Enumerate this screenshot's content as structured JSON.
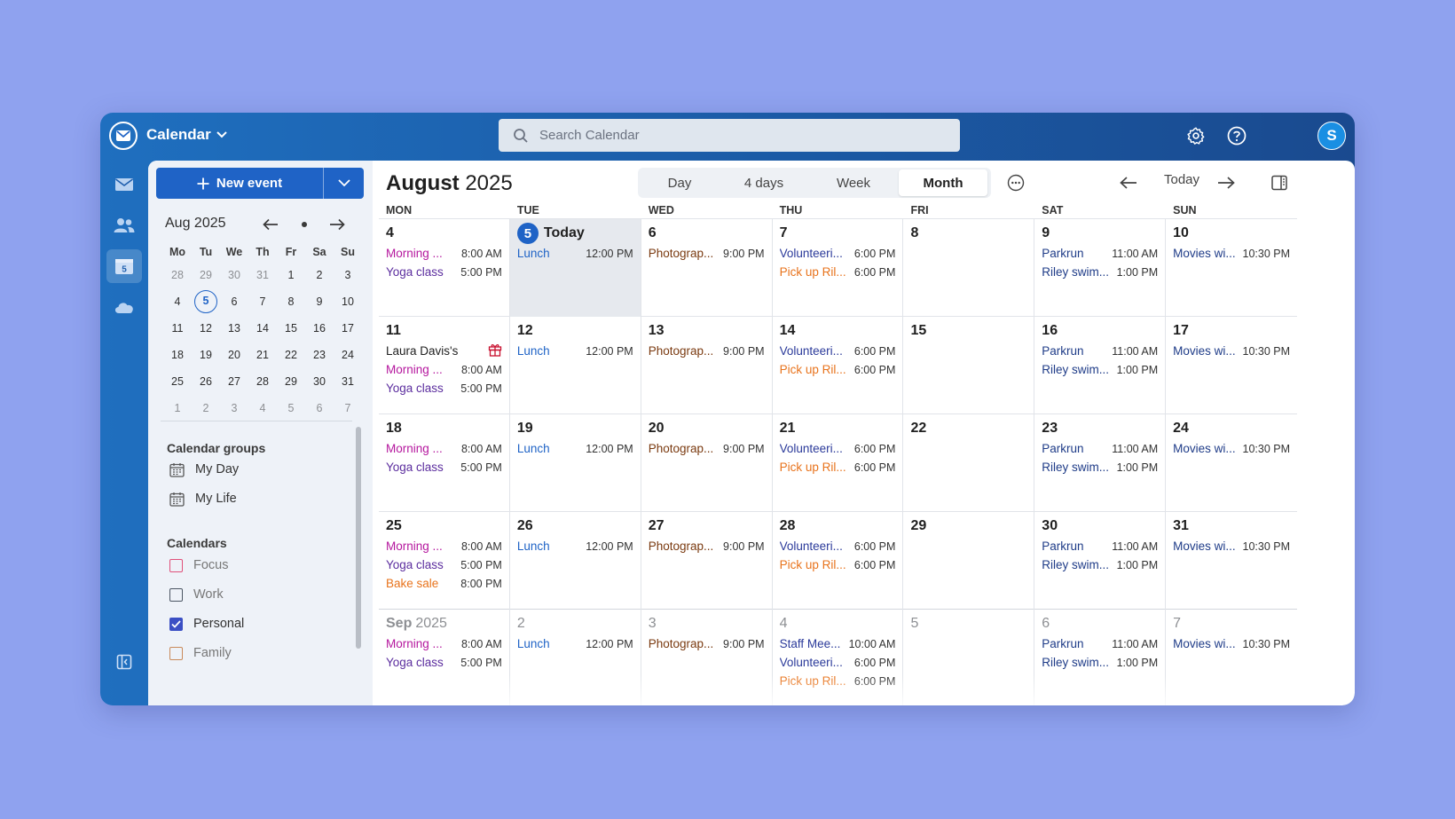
{
  "app": {
    "title": "Calendar"
  },
  "search": {
    "placeholder": "Search Calendar"
  },
  "user": {
    "avatar_initial": "S"
  },
  "rail": {
    "calendar_day": "5"
  },
  "sidebar": {
    "new_event_label": "New event",
    "mini_calendar": {
      "title": "Aug 2025",
      "weekdays": [
        "Mo",
        "Tu",
        "We",
        "Th",
        "Fr",
        "Sa",
        "Su"
      ],
      "weeks": [
        [
          "28",
          "29",
          "30",
          "31",
          "1",
          "2",
          "3"
        ],
        [
          "4",
          "5",
          "6",
          "7",
          "8",
          "9",
          "10"
        ],
        [
          "11",
          "12",
          "13",
          "14",
          "15",
          "16",
          "17"
        ],
        [
          "18",
          "19",
          "20",
          "21",
          "22",
          "23",
          "24"
        ],
        [
          "25",
          "26",
          "27",
          "28",
          "29",
          "30",
          "31"
        ],
        [
          "1",
          "2",
          "3",
          "4",
          "5",
          "6",
          "7"
        ]
      ],
      "today": "5"
    },
    "calendar_groups": {
      "title": "Calendar groups",
      "items": [
        "My Day",
        "My Life"
      ]
    },
    "calendars": {
      "title": "Calendars",
      "items": [
        {
          "label": "Focus",
          "color": "#e0507a",
          "checked": false
        },
        {
          "label": "Work",
          "color": "#4b5563",
          "checked": false
        },
        {
          "label": "Personal",
          "color": "#3b4fc4",
          "checked": true
        },
        {
          "label": "Family",
          "color": "#c98a5a",
          "checked": false
        }
      ]
    }
  },
  "header": {
    "month": "August",
    "year": "2025",
    "views": [
      "Day",
      "4 days",
      "Week",
      "Month"
    ],
    "active_view": "Month",
    "today_label": "Today"
  },
  "colors": {
    "magenta": "#b5179e",
    "purple": "#5b2d9e",
    "blue": "#1f63c6",
    "brown": "#7a3a10",
    "navy": "#2b3a9a",
    "orange": "#e8731c",
    "darkblue": "#1f3c88"
  },
  "weekdays": [
    "MON",
    "TUE",
    "WED",
    "THU",
    "FRI",
    "SAT",
    "SUN"
  ],
  "weeks": [
    [
      {
        "num": "4",
        "events": [
          {
            "title": "Morning ...",
            "time": "8:00 AM",
            "color": "magenta"
          },
          {
            "title": "Yoga class",
            "time": "5:00 PM",
            "color": "purple"
          }
        ]
      },
      {
        "num": "5",
        "today": true,
        "today_label": "Today",
        "events": [
          {
            "title": "Lunch",
            "time": "12:00 PM",
            "color": "blue"
          }
        ]
      },
      {
        "num": "6",
        "events": [
          {
            "title": "Photograp...",
            "time": "9:00 PM",
            "color": "brown"
          }
        ]
      },
      {
        "num": "7",
        "events": [
          {
            "title": "Volunteeri...",
            "time": "6:00 PM",
            "color": "navy"
          },
          {
            "title": "Pick up Ril...",
            "time": "6:00 PM",
            "color": "orange"
          }
        ]
      },
      {
        "num": "8",
        "events": []
      },
      {
        "num": "9",
        "events": [
          {
            "title": "Parkrun",
            "time": "11:00 AM",
            "color": "darkblue"
          },
          {
            "title": "Riley swim...",
            "time": "1:00 PM",
            "color": "darkblue"
          }
        ]
      },
      {
        "num": "10",
        "events": [
          {
            "title": "Movies wi...",
            "time": "10:30 PM",
            "color": "darkblue"
          }
        ]
      }
    ],
    [
      {
        "num": "11",
        "events": [
          {
            "title": "Laura Davis's ...",
            "time": "",
            "color": "dark",
            "gift": true
          },
          {
            "title": "Morning ...",
            "time": "8:00 AM",
            "color": "magenta"
          },
          {
            "title": "Yoga class",
            "time": "5:00 PM",
            "color": "purple"
          }
        ]
      },
      {
        "num": "12",
        "events": [
          {
            "title": "Lunch",
            "time": "12:00 PM",
            "color": "blue"
          }
        ]
      },
      {
        "num": "13",
        "events": [
          {
            "title": "Photograp...",
            "time": "9:00 PM",
            "color": "brown"
          }
        ]
      },
      {
        "num": "14",
        "events": [
          {
            "title": "Volunteeri...",
            "time": "6:00 PM",
            "color": "navy"
          },
          {
            "title": "Pick up Ril...",
            "time": "6:00 PM",
            "color": "orange"
          }
        ]
      },
      {
        "num": "15",
        "events": []
      },
      {
        "num": "16",
        "events": [
          {
            "title": "Parkrun",
            "time": "11:00 AM",
            "color": "darkblue"
          },
          {
            "title": "Riley swim...",
            "time": "1:00 PM",
            "color": "darkblue"
          }
        ]
      },
      {
        "num": "17",
        "events": [
          {
            "title": "Movies wi...",
            "time": "10:30 PM",
            "color": "darkblue"
          }
        ]
      }
    ],
    [
      {
        "num": "18",
        "events": [
          {
            "title": "Morning ...",
            "time": "8:00 AM",
            "color": "magenta"
          },
          {
            "title": "Yoga class",
            "time": "5:00 PM",
            "color": "purple"
          }
        ]
      },
      {
        "num": "19",
        "events": [
          {
            "title": "Lunch",
            "time": "12:00 PM",
            "color": "blue"
          }
        ]
      },
      {
        "num": "20",
        "events": [
          {
            "title": "Photograp...",
            "time": "9:00 PM",
            "color": "brown"
          }
        ]
      },
      {
        "num": "21",
        "events": [
          {
            "title": "Volunteeri...",
            "time": "6:00 PM",
            "color": "navy"
          },
          {
            "title": "Pick up Ril...",
            "time": "6:00 PM",
            "color": "orange"
          }
        ]
      },
      {
        "num": "22",
        "events": []
      },
      {
        "num": "23",
        "events": [
          {
            "title": "Parkrun",
            "time": "11:00 AM",
            "color": "darkblue"
          },
          {
            "title": "Riley swim...",
            "time": "1:00 PM",
            "color": "darkblue"
          }
        ]
      },
      {
        "num": "24",
        "events": [
          {
            "title": "Movies wi...",
            "time": "10:30 PM",
            "color": "darkblue"
          }
        ]
      }
    ],
    [
      {
        "num": "25",
        "events": [
          {
            "title": "Morning ...",
            "time": "8:00 AM",
            "color": "magenta"
          },
          {
            "title": "Yoga class",
            "time": "5:00 PM",
            "color": "purple"
          },
          {
            "title": "Bake sale",
            "time": "8:00 PM",
            "color": "orange"
          }
        ]
      },
      {
        "num": "26",
        "events": [
          {
            "title": "Lunch",
            "time": "12:00 PM",
            "color": "blue"
          }
        ]
      },
      {
        "num": "27",
        "events": [
          {
            "title": "Photograp...",
            "time": "9:00 PM",
            "color": "brown"
          }
        ]
      },
      {
        "num": "28",
        "events": [
          {
            "title": "Volunteeri...",
            "time": "6:00 PM",
            "color": "navy"
          },
          {
            "title": "Pick up Ril...",
            "time": "6:00 PM",
            "color": "orange"
          }
        ]
      },
      {
        "num": "29",
        "events": []
      },
      {
        "num": "30",
        "events": [
          {
            "title": "Parkrun",
            "time": "11:00 AM",
            "color": "darkblue"
          },
          {
            "title": "Riley swim...",
            "time": "1:00 PM",
            "color": "darkblue"
          }
        ]
      },
      {
        "num": "31",
        "events": [
          {
            "title": "Movies wi...",
            "time": "10:30 PM",
            "color": "darkblue"
          }
        ]
      }
    ],
    [
      {
        "num": "Sep",
        "num2": "2025",
        "muted": true,
        "events": [
          {
            "title": "Morning ...",
            "time": "8:00 AM",
            "color": "magenta"
          },
          {
            "title": "Yoga class",
            "time": "5:00 PM",
            "color": "purple"
          }
        ]
      },
      {
        "num": "2",
        "muted": true,
        "events": [
          {
            "title": "Lunch",
            "time": "12:00 PM",
            "color": "blue"
          }
        ]
      },
      {
        "num": "3",
        "muted": true,
        "events": [
          {
            "title": "Photograp...",
            "time": "9:00 PM",
            "color": "brown"
          }
        ]
      },
      {
        "num": "4",
        "muted": true,
        "events": [
          {
            "title": "Staff Mee...",
            "time": "10:00 AM",
            "color": "navy"
          },
          {
            "title": "Volunteeri...",
            "time": "6:00 PM",
            "color": "navy"
          },
          {
            "title": "Pick up Ril...",
            "time": "6:00 PM",
            "color": "orange"
          }
        ]
      },
      {
        "num": "5",
        "muted": true,
        "events": []
      },
      {
        "num": "6",
        "muted": true,
        "events": [
          {
            "title": "Parkrun",
            "time": "11:00 AM",
            "color": "darkblue"
          },
          {
            "title": "Riley swim...",
            "time": "1:00 PM",
            "color": "darkblue"
          }
        ]
      },
      {
        "num": "7",
        "muted": true,
        "events": [
          {
            "title": "Movies wi...",
            "time": "10:30 PM",
            "color": "darkblue"
          }
        ]
      }
    ]
  ]
}
